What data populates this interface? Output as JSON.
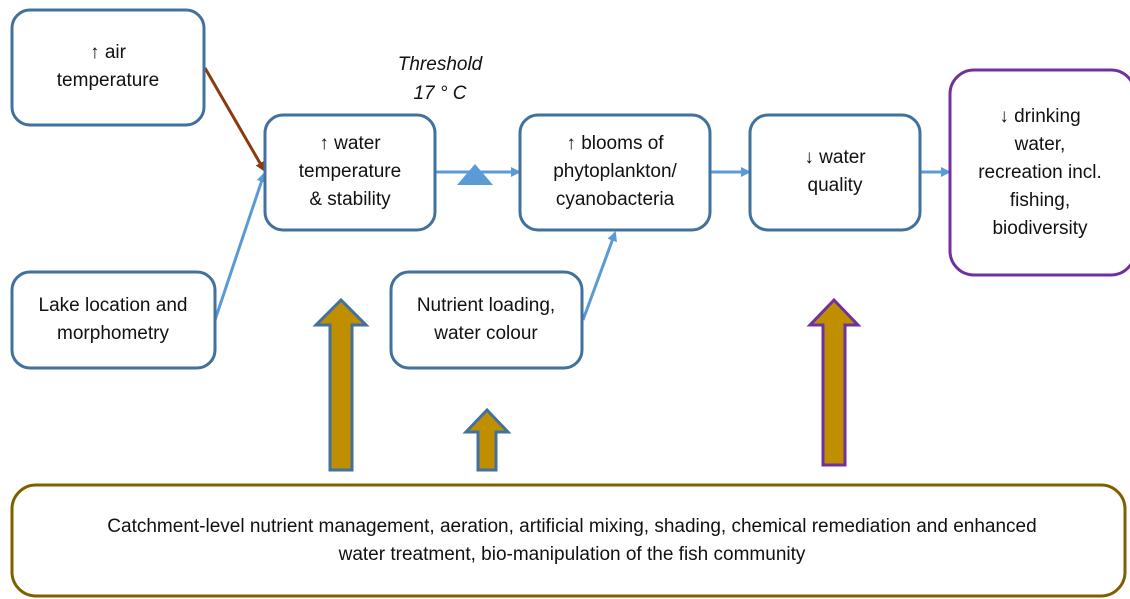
{
  "nodes": [
    {
      "id": "air",
      "lines": [
        "↑ air",
        "temperature"
      ]
    },
    {
      "id": "water-temp",
      "lines": [
        "↑ water",
        "temperature",
        "& stability"
      ]
    },
    {
      "id": "blooms",
      "lines": [
        "↑ blooms of",
        "phytoplankton/",
        "cyanobacteria"
      ]
    },
    {
      "id": "water-quality",
      "lines": [
        "↓ water",
        "quality"
      ]
    },
    {
      "id": "impacts",
      "lines": [
        "↓ drinking",
        "water,",
        "recreation incl.",
        "fishing,",
        "biodiversity"
      ]
    },
    {
      "id": "lake",
      "lines": [
        "Lake location and",
        "morphometry"
      ]
    },
    {
      "id": "nutrient",
      "lines": [
        "Nutrient loading,",
        "water colour"
      ]
    },
    {
      "id": "management",
      "lines": [
        "Catchment-level nutrient management, aeration, artificial mixing, shading, chemical remediation and enhanced",
        "water treatment, bio-manipulation of the fish community"
      ]
    }
  ],
  "threshold": {
    "lines": [
      "Threshold",
      "17 ° C"
    ]
  }
}
